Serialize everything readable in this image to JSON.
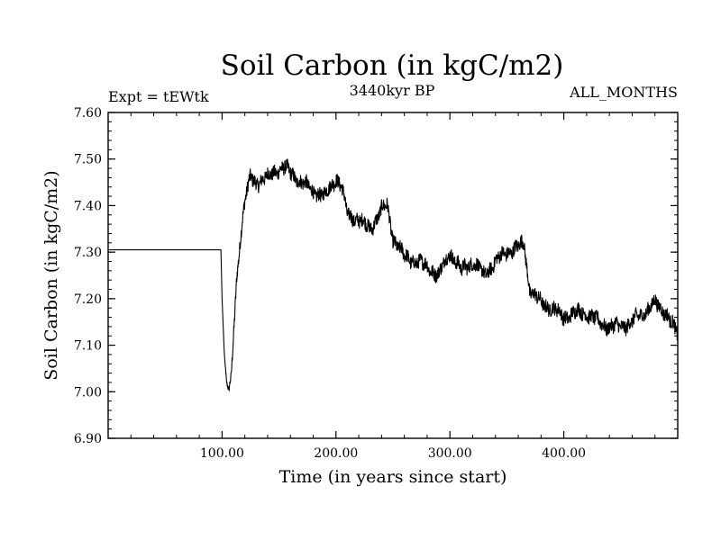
{
  "chart_data": {
    "type": "line",
    "title": "Soil Carbon (in kgC/m2)",
    "subtitle_left": "Expt = tEWtk",
    "subtitle_center": "3440kyr BP",
    "subtitle_right": "ALL_MONTHS",
    "xlabel": "Time (in years since start)",
    "ylabel": "Soil Carbon (in kgC/m2)",
    "xlim": [
      0,
      500
    ],
    "ylim": [
      6.9,
      7.6
    ],
    "x_ticks": [
      100,
      200,
      300,
      400
    ],
    "x_tick_labels": [
      "100.00",
      "200.00",
      "300.00",
      "400.00"
    ],
    "y_ticks": [
      6.9,
      7.0,
      7.1,
      7.2,
      7.3,
      7.4,
      7.5,
      7.6
    ],
    "y_tick_labels": [
      "6.90",
      "7.00",
      "7.10",
      "7.20",
      "7.30",
      "7.40",
      "7.50",
      "7.60"
    ],
    "line_color": "#000000",
    "noise_amplitude": 0.03,
    "series": [
      {
        "name": "Soil Carbon",
        "x": [
          0,
          99,
          100,
          102,
          104,
          106,
          108,
          110,
          113,
          116,
          120,
          125,
          130,
          140,
          150,
          155,
          160,
          170,
          180,
          190,
          200,
          205,
          210,
          220,
          230,
          240,
          245,
          250,
          260,
          270,
          280,
          290,
          300,
          310,
          320,
          330,
          340,
          350,
          360,
          365,
          370,
          380,
          390,
          400,
          410,
          420,
          430,
          440,
          450,
          460,
          470,
          480,
          490,
          500
        ],
        "y": [
          7.305,
          7.305,
          7.2,
          7.08,
          7.02,
          7.0,
          7.03,
          7.12,
          7.25,
          7.33,
          7.41,
          7.46,
          7.45,
          7.46,
          7.48,
          7.48,
          7.47,
          7.45,
          7.43,
          7.42,
          7.46,
          7.44,
          7.38,
          7.37,
          7.35,
          7.39,
          7.4,
          7.33,
          7.29,
          7.28,
          7.27,
          7.25,
          7.3,
          7.26,
          7.28,
          7.25,
          7.28,
          7.3,
          7.31,
          7.32,
          7.22,
          7.19,
          7.18,
          7.16,
          7.17,
          7.17,
          7.15,
          7.14,
          7.14,
          7.15,
          7.17,
          7.19,
          7.17,
          7.12
        ]
      }
    ]
  }
}
